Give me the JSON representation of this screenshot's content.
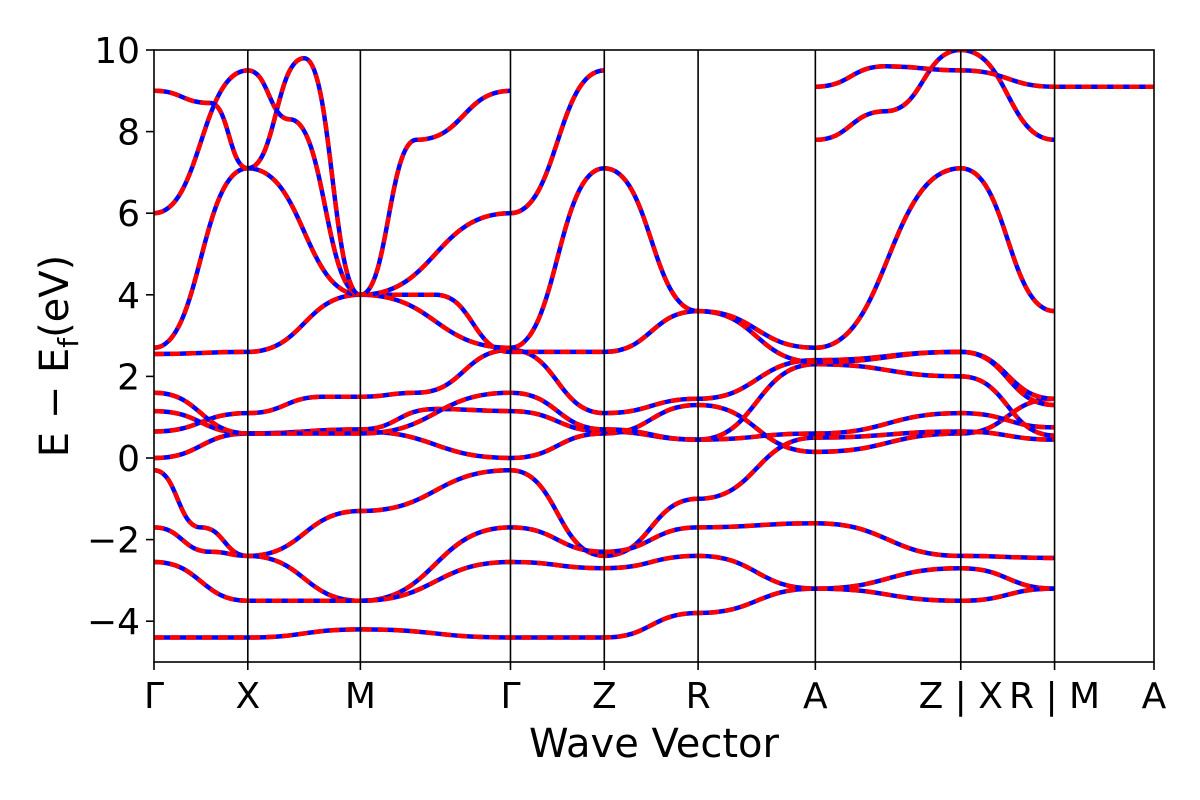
{
  "chart_data": {
    "type": "line",
    "xlabel": "Wave Vector",
    "ylabel": "E − E",
    "ylabel_sub": "f",
    "ylabel_unit": "(eV)",
    "ylim": [
      -5,
      10
    ],
    "yticks": [
      -4,
      -2,
      0,
      2,
      4,
      6,
      8,
      10
    ],
    "ytick_labels": [
      "−4",
      "−2",
      "0",
      "2",
      "4",
      "6",
      "8",
      "10"
    ],
    "xlim": [
      0,
      10.66
    ],
    "kpoints": [
      {
        "label": "Γ",
        "x": 0.0
      },
      {
        "label": "X",
        "x": 1.0
      },
      {
        "label": "M",
        "x": 2.2
      },
      {
        "label": "Γ",
        "x": 3.8
      },
      {
        "label": "Z",
        "x": 4.8
      },
      {
        "label": "R",
        "x": 5.8
      },
      {
        "label": "A",
        "x": 7.05
      },
      {
        "label": "Z | X",
        "x": 8.6
      },
      {
        "label": "R | M",
        "x": 9.6
      },
      {
        "label": "A",
        "x": 10.66
      }
    ],
    "series_colors": {
      "primary": "#ff0000",
      "overlay": "#0000ff"
    },
    "bands": [
      {
        "x": [
          0,
          1,
          2.2,
          3.8,
          4.8,
          5.8,
          7.05,
          8.6,
          9.6
        ],
        "y": [
          0.0,
          0.6,
          0.65,
          0.0,
          0.6,
          1.3,
          0.15,
          0.6,
          1.45
        ]
      },
      {
        "x": [
          0,
          0.5,
          1,
          2.2,
          3.8,
          4.8,
          5.8,
          7.05,
          8.6,
          9.6
        ],
        "y": [
          -0.3,
          -1.7,
          -2.4,
          -1.3,
          -0.3,
          -2.4,
          -1.0,
          0.5,
          0.65,
          0.45
        ]
      },
      {
        "x": [
          0,
          0.6,
          1,
          2.2,
          3.8,
          4.8,
          5.8,
          7.05,
          8.6,
          9.6
        ],
        "y": [
          -1.7,
          -2.3,
          -2.4,
          -3.5,
          -1.7,
          -2.3,
          -1.7,
          -1.6,
          -2.4,
          -2.45
        ]
      },
      {
        "x": [
          0,
          1,
          2.2,
          3.8,
          4.8,
          5.8,
          7.05,
          8.6,
          9.6
        ],
        "y": [
          -2.55,
          -3.5,
          -3.5,
          -2.55,
          -2.7,
          -2.4,
          -3.2,
          -2.7,
          -3.2
        ]
      },
      {
        "x": [
          0,
          1,
          2.2,
          3.8,
          4.8,
          5.8,
          7.05,
          8.6,
          9.6
        ],
        "y": [
          -4.4,
          -4.4,
          -4.2,
          -4.4,
          -4.4,
          -3.8,
          -3.2,
          -3.5,
          -3.2
        ]
      },
      {
        "x": [
          0,
          1,
          1.8,
          2.2,
          2.8,
          3.8,
          4.8,
          5.8,
          7.05,
          8.6,
          9.6
        ],
        "y": [
          0.65,
          1.1,
          1.5,
          1.5,
          1.6,
          2.65,
          1.1,
          1.45,
          2.4,
          2.6,
          1.45
        ]
      },
      {
        "x": [
          0,
          1,
          2.2,
          3.0,
          3.8,
          4.8,
          5.8,
          7.05,
          8.6,
          9.6
        ],
        "y": [
          1.15,
          0.6,
          0.7,
          1.2,
          1.15,
          0.65,
          0.45,
          0.6,
          1.1,
          0.75
        ]
      },
      {
        "x": [
          0,
          1,
          2.2,
          3.8,
          4.8,
          5.8,
          7.05,
          8.6,
          9.6
        ],
        "y": [
          1.6,
          0.6,
          0.6,
          1.6,
          0.7,
          0.45,
          2.3,
          2.0,
          0.55
        ]
      },
      {
        "x": [
          0,
          1,
          2.2,
          3.0,
          3.8,
          4.8,
          5.8,
          7.05,
          8.6,
          9.6
        ],
        "y": [
          2.55,
          2.6,
          4.0,
          4.0,
          2.6,
          2.6,
          3.6,
          2.35,
          2.6,
          1.3
        ]
      },
      {
        "x": [
          0,
          1,
          2.2,
          3.8,
          4.8,
          5.8,
          7.05,
          8.6,
          9.6
        ],
        "y": [
          2.7,
          7.1,
          4.0,
          2.7,
          7.1,
          3.6,
          2.7,
          7.1,
          3.6
        ]
      },
      {
        "x": [
          0,
          1,
          1.45,
          2.2,
          3.8,
          4.8
        ],
        "y": [
          6.0,
          9.5,
          8.3,
          4.0,
          6.0,
          9.5
        ]
      },
      {
        "x": [
          0,
          0.6,
          1,
          1.6,
          2.2,
          2.8,
          3.8
        ],
        "y": [
          9.0,
          8.7,
          7.1,
          9.8,
          4.0,
          7.8,
          9.0
        ]
      },
      {
        "x": [
          7.05,
          7.8,
          8.6,
          9.6
        ],
        "y": [
          7.8,
          8.5,
          10.0,
          7.8
        ]
      },
      {
        "x": [
          7.05,
          7.8,
          8.6,
          9.6,
          10.66
        ],
        "y": [
          9.1,
          9.6,
          9.5,
          9.1,
          9.1
        ]
      }
    ]
  }
}
